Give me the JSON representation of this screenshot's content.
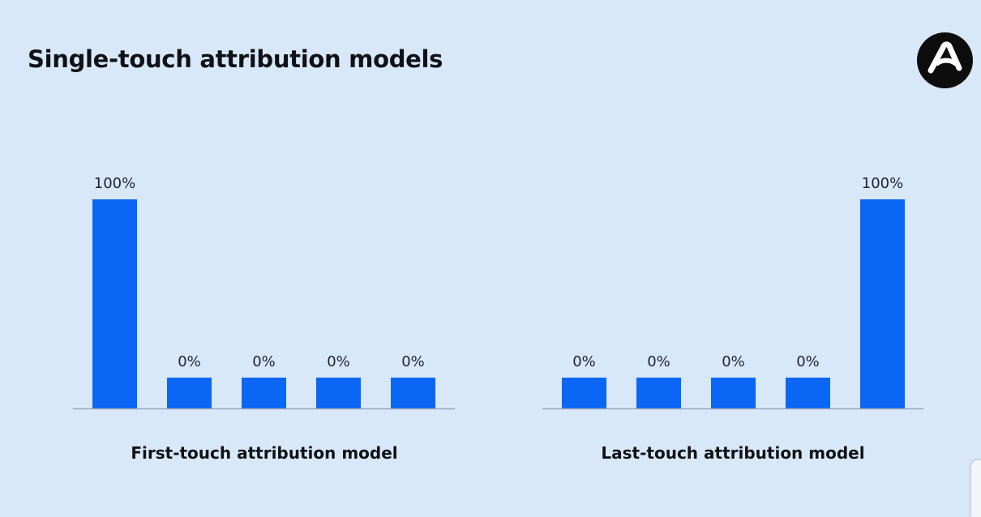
{
  "title": "Single-touch attribution models",
  "logo": {
    "icon": "brand-a-logo-icon",
    "background": "#0d0d0d",
    "foreground": "#ffffff"
  },
  "colors": {
    "bar": "#0a66f5",
    "background": "#d9e8f8",
    "axis": "#9aa7b6"
  },
  "chart_data": [
    {
      "type": "bar",
      "title": "",
      "xlabel": "First-touch attribution model",
      "ylabel": "",
      "categories": [
        "",
        "",
        "",
        "",
        ""
      ],
      "values": [
        100,
        0,
        0,
        0,
        0
      ],
      "labels": [
        "100%",
        "0%",
        "0%",
        "0%",
        "0%"
      ],
      "ylim": [
        0,
        100
      ],
      "grid": false
    },
    {
      "type": "bar",
      "title": "",
      "xlabel": "Last-touch attribution model",
      "ylabel": "",
      "categories": [
        "",
        "",
        "",
        "",
        ""
      ],
      "values": [
        0,
        0,
        0,
        0,
        100
      ],
      "labels": [
        "0%",
        "0%",
        "0%",
        "0%",
        "100%"
      ],
      "ylim": [
        0,
        100
      ],
      "grid": false
    }
  ]
}
